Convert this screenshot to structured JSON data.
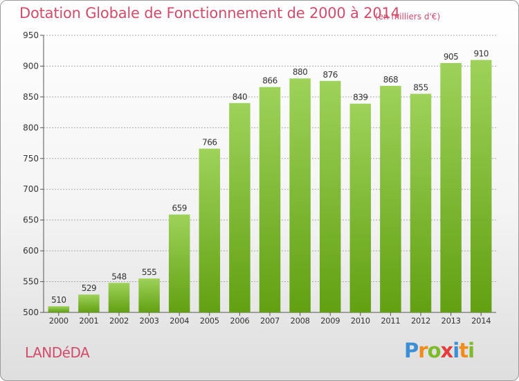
{
  "title": "Dotation Globale de Fonctionnement de 2000 à 2014",
  "subtitle": "(en milliers d'€)",
  "city": "LANDéDA",
  "logo": {
    "text": "Proxiti",
    "letters": [
      {
        "char": "P",
        "color": "#3a8fd6"
      },
      {
        "char": "r",
        "color": "#f08c1c"
      },
      {
        "char": "o",
        "color": "#7dbb2a"
      },
      {
        "char": "x",
        "color": "#e43d3d"
      },
      {
        "char": "i",
        "color": "#3a8fd6"
      },
      {
        "char": "t",
        "color": "#f08c1c"
      },
      {
        "char": "i",
        "color": "#7dbb2a"
      }
    ]
  },
  "colors": {
    "title": "#d24b6b",
    "bar_top": "#9ed25a",
    "bar_bottom": "#62a012",
    "grid": "#a8a8a8"
  },
  "chart_data": {
    "type": "bar",
    "title": "Dotation Globale de Fonctionnement de 2000 à 2014",
    "subtitle": "(en milliers d'€)",
    "xlabel": "",
    "ylabel": "",
    "categories": [
      "2000",
      "2001",
      "2002",
      "2003",
      "2004",
      "2005",
      "2006",
      "2007",
      "2008",
      "2009",
      "2010",
      "2011",
      "2012",
      "2013",
      "2014"
    ],
    "values": [
      510,
      529,
      548,
      555,
      659,
      766,
      840,
      866,
      880,
      876,
      839,
      868,
      855,
      905,
      910
    ],
    "data_labels": [
      "510",
      "529",
      "548",
      "555",
      "659",
      "766",
      "840",
      "866",
      "880",
      "876",
      "839",
      "868",
      "855",
      "905",
      "910"
    ],
    "ylim": [
      500,
      950
    ],
    "yticks": [
      500,
      550,
      600,
      650,
      700,
      750,
      800,
      850,
      900,
      950
    ],
    "ytick_labels": [
      "500",
      "550",
      "600",
      "650",
      "700",
      "750",
      "800",
      "850",
      "900",
      "950"
    ],
    "grid": true,
    "legend": "none"
  }
}
